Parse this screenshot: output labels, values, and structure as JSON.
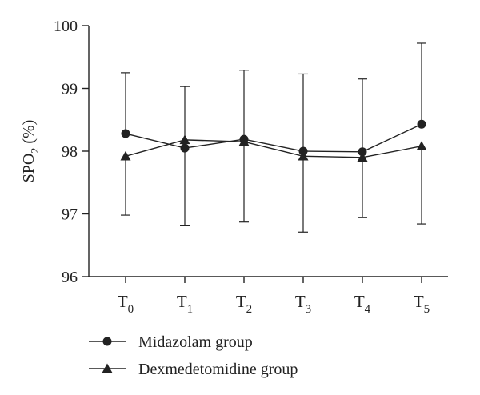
{
  "chart_data": {
    "type": "line",
    "xlabel": "",
    "ylabel": "SPO2 (%)",
    "ylabel_parts": {
      "main": "SPO",
      "sub": "2",
      "rest": " (%)"
    },
    "ylim": [
      96,
      100
    ],
    "yticks": [
      "96",
      "97",
      "98",
      "99",
      "100"
    ],
    "categories": [
      {
        "main": "T",
        "sub": "0"
      },
      {
        "main": "T",
        "sub": "1"
      },
      {
        "main": "T",
        "sub": "2"
      },
      {
        "main": "T",
        "sub": "3"
      },
      {
        "main": "T",
        "sub": "4"
      },
      {
        "main": "T",
        "sub": "5"
      }
    ],
    "grid": false,
    "legend_position": "bottom-left",
    "series": [
      {
        "name": "Midazolam group",
        "marker": "circle",
        "values": [
          98.28,
          98.05,
          98.19,
          98.0,
          97.99,
          98.43
        ],
        "error_upper": [
          99.25,
          99.03,
          99.29,
          99.23,
          99.15,
          99.72
        ],
        "error_lower": [
          98.28,
          98.05,
          98.19,
          98.0,
          97.99,
          98.43
        ]
      },
      {
        "name": "Dexmedetomidine group",
        "marker": "triangle",
        "values": [
          97.92,
          98.18,
          98.15,
          97.92,
          97.9,
          98.08
        ],
        "error_upper": [
          97.92,
          98.18,
          98.15,
          97.92,
          97.9,
          98.08
        ],
        "error_lower": [
          96.98,
          96.81,
          96.87,
          96.71,
          96.94,
          96.84
        ]
      }
    ],
    "colors": {
      "line": "#222222"
    }
  }
}
